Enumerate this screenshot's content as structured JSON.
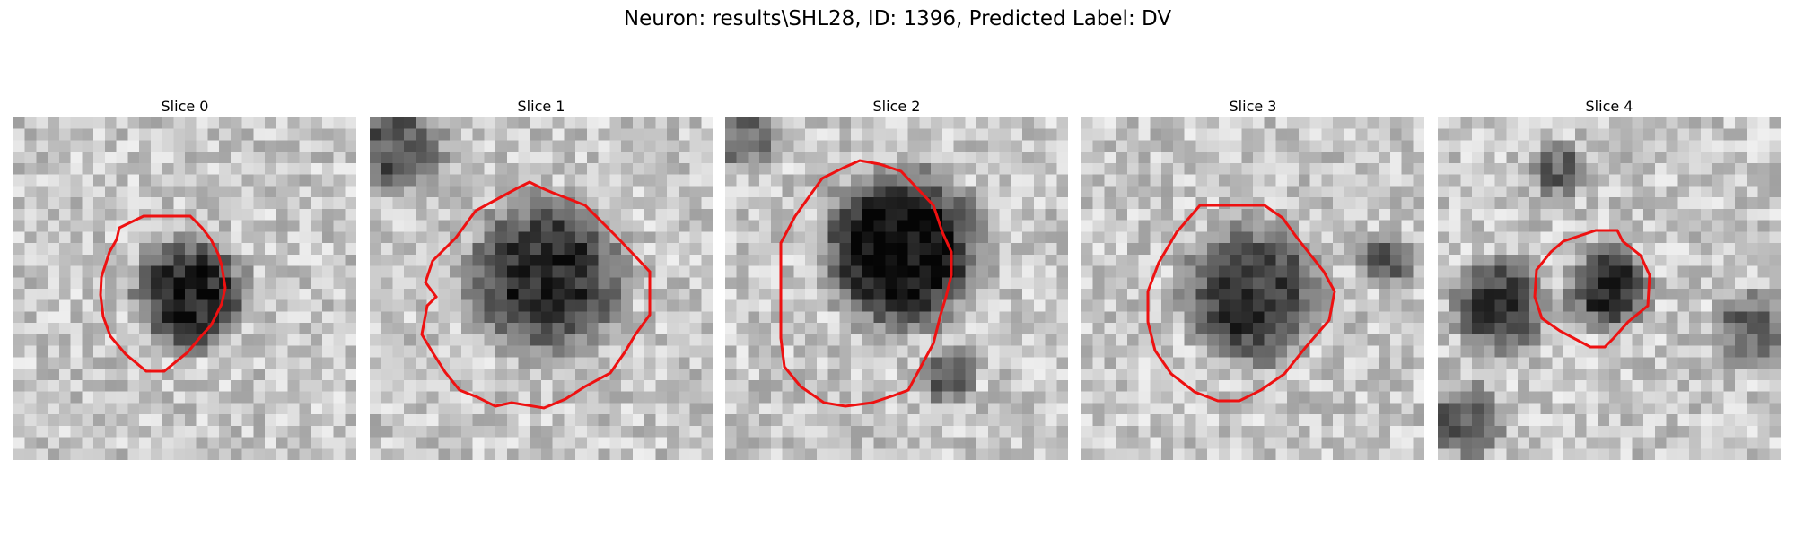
{
  "figure": {
    "title": "Neuron: results\\SHL28, ID: 1396, Predicted Label: DV"
  },
  "colors": {
    "contour": "#ee1111",
    "background": "#ffffff"
  },
  "panels": [
    {
      "title": "Slice 0"
    },
    {
      "title": "Slice 1"
    },
    {
      "title": "Slice 2"
    },
    {
      "title": "Slice 3"
    },
    {
      "title": "Slice 4"
    }
  ]
}
